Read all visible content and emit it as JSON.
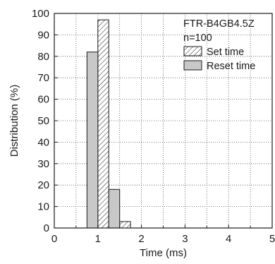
{
  "chart_data": {
    "type": "bar",
    "model": "FTR-B4GB4.5Z",
    "sample": "n=100",
    "xlabel": "Time (ms)",
    "ylabel": "Distribution (%)",
    "xlim": [
      0,
      5
    ],
    "ylim": [
      0,
      100
    ],
    "x_ticks": [
      "0",
      "1",
      "2",
      "3",
      "4",
      "5"
    ],
    "y_ticks": [
      "0",
      "10",
      "20",
      "30",
      "40",
      "50",
      "60",
      "70",
      "80",
      "90",
      "100"
    ],
    "grid": true,
    "legend_position": "top-right",
    "bin_width": 0.25,
    "series": [
      {
        "name": "Set time",
        "fill": "hatched",
        "bins": [
          {
            "start": 1.0,
            "value": 97
          },
          {
            "start": 1.5,
            "value": 3
          }
        ]
      },
      {
        "name": "Reset time",
        "fill": "#c8c8c8",
        "bins": [
          {
            "start": 0.75,
            "value": 82
          },
          {
            "start": 1.25,
            "value": 18
          }
        ]
      }
    ]
  }
}
